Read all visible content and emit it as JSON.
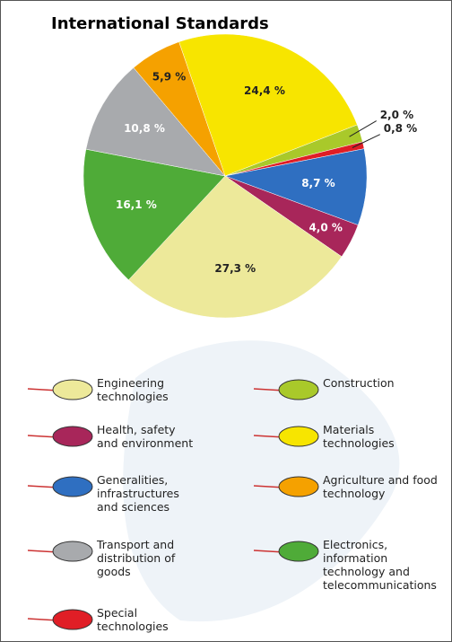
{
  "chart_data": {
    "type": "pie",
    "title": "International Standards",
    "categories": [
      "Engineering technologies",
      "Health, safety and environment",
      "Generalities, infrastructures and sciences",
      "Transport and distribution of goods",
      "Special technologies",
      "Construction",
      "Materials technologies",
      "Agriculture and food technology",
      "Electronics, information technology and telecommunications"
    ],
    "values": [
      27.3,
      4.0,
      8.7,
      10.8,
      0.8,
      2.0,
      24.4,
      5.9,
      16.1
    ],
    "value_labels": [
      "27,3 %",
      "4,0 %",
      "8,7 %",
      "10,8 %",
      "0,8 %",
      "2,0 %",
      "24,4 %",
      "5,9 %",
      "16,1 %"
    ],
    "colors": [
      "#ede99a",
      "#a8265a",
      "#2f6fc1",
      "#a8aaad",
      "#e01e26",
      "#a9c92a",
      "#f7e500",
      "#f5a100",
      "#4fab38"
    ]
  }
}
